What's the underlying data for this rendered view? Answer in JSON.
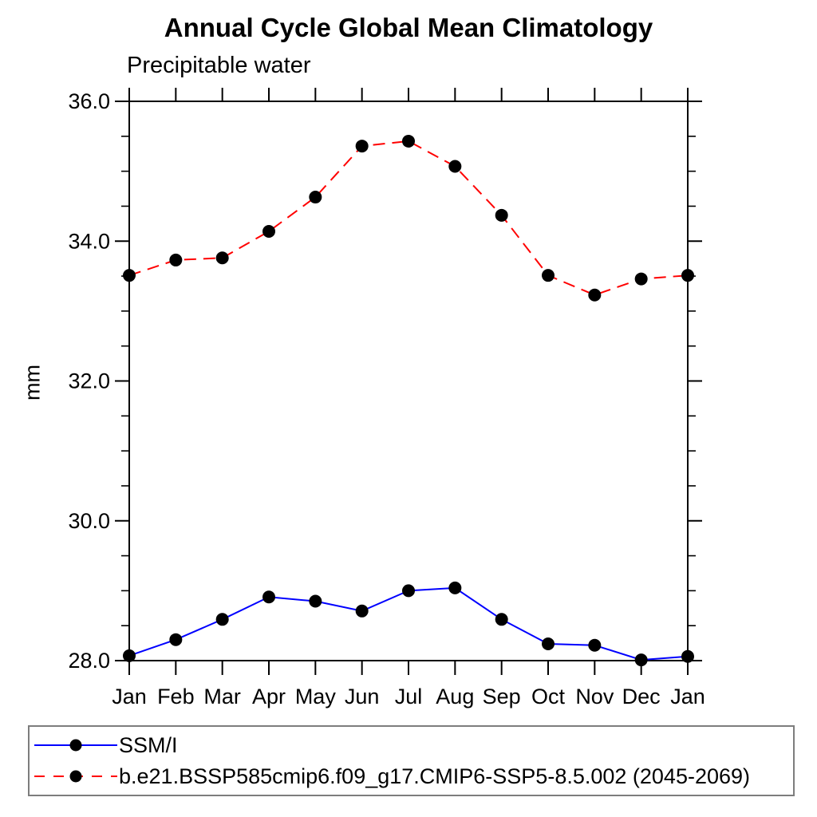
{
  "chart_data": {
    "type": "line",
    "title": "Annual Cycle Global Mean Climatology",
    "subtitle": "Precipitable water",
    "ylabel": "mm",
    "xlabel": "",
    "categories": [
      "Jan",
      "Feb",
      "Mar",
      "Apr",
      "May",
      "Jun",
      "Jul",
      "Aug",
      "Sep",
      "Oct",
      "Nov",
      "Dec",
      "Jan"
    ],
    "ylim": [
      28.0,
      36.0
    ],
    "y_major_ticks": [
      28.0,
      30.0,
      32.0,
      34.0,
      36.0
    ],
    "y_minor_step": 0.5,
    "y_tick_decimals": 1,
    "grid": false,
    "legend_position": "bottom",
    "series": [
      {
        "name": "SSM/I",
        "color": "#0000ff",
        "style": "solid",
        "marker": "circle",
        "marker_color": "#000000",
        "values": [
          28.07,
          28.3,
          28.59,
          28.91,
          28.85,
          28.71,
          29.0,
          29.04,
          28.59,
          28.24,
          28.22,
          28.01,
          28.06
        ]
      },
      {
        "name": "b.e21.BSSP585cmip6.f09_g17.CMIP6-SSP5-8.5.002 (2045-2069)",
        "color": "#ff0000",
        "style": "dashed",
        "marker": "circle",
        "marker_color": "#000000",
        "values": [
          33.51,
          33.73,
          33.76,
          34.14,
          34.63,
          35.36,
          35.43,
          35.07,
          34.37,
          33.51,
          33.23,
          33.46,
          33.51
        ]
      }
    ]
  }
}
